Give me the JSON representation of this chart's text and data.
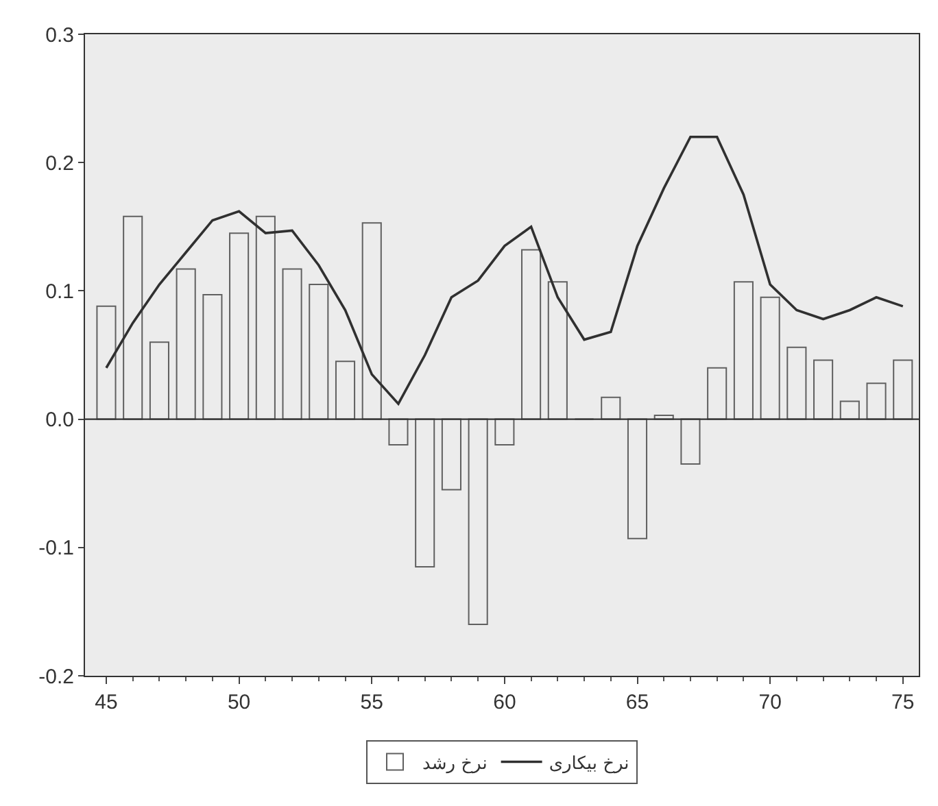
{
  "chart_data": {
    "type": "bar",
    "x": [
      45,
      46,
      47,
      48,
      49,
      50,
      51,
      52,
      53,
      54,
      55,
      56,
      57,
      58,
      59,
      60,
      61,
      62,
      63,
      64,
      65,
      66,
      67,
      68,
      69,
      70,
      71,
      72,
      73,
      74,
      75
    ],
    "series": [
      {
        "name": "نرخ رشد",
        "color": "#606060",
        "values": [
          0.088,
          0.158,
          0.06,
          0.117,
          0.097,
          0.145,
          0.158,
          0.117,
          0.105,
          0.045,
          0.153,
          -0.02,
          -0.115,
          -0.055,
          -0.16,
          -0.02,
          0.132,
          0.107,
          0.0,
          0.017,
          -0.093,
          0.003,
          -0.035,
          0.04,
          0.107,
          0.095,
          0.056,
          0.046,
          0.014,
          0.028,
          0.046
        ]
      },
      {
        "name": "نرخ بیکاری",
        "type": "line",
        "color": "#303030",
        "values": [
          0.04,
          0.075,
          0.105,
          0.13,
          0.155,
          0.162,
          0.145,
          0.147,
          0.12,
          0.085,
          0.035,
          0.012,
          0.05,
          0.095,
          0.108,
          0.135,
          0.15,
          0.095,
          0.062,
          0.068,
          0.135,
          0.18,
          0.22,
          0.22,
          0.175,
          0.105,
          0.085,
          0.078,
          0.085,
          0.095,
          0.088
        ]
      }
    ],
    "xlim": [
      44.2,
      75.6
    ],
    "xticks": [
      45,
      50,
      55,
      60,
      65,
      70,
      75
    ],
    "ylim": [
      -0.2,
      0.3
    ],
    "yticks": [
      {
        "value": -0.2,
        "label": "-0.2"
      },
      {
        "value": -0.1,
        "label": "-0.1"
      },
      {
        "value": 0,
        "label": "0.0"
      },
      {
        "value": 0.1,
        "label": "0.1"
      },
      {
        "value": 0.2,
        "label": "0.2"
      },
      {
        "value": 0.3,
        "label": "0.3"
      }
    ],
    "ref_lines": [
      {
        "axis": "y",
        "value": 0,
        "color": "#303030"
      }
    ],
    "grid": false,
    "legend": "bottom",
    "marker": "none",
    "line_style": "solid"
  }
}
